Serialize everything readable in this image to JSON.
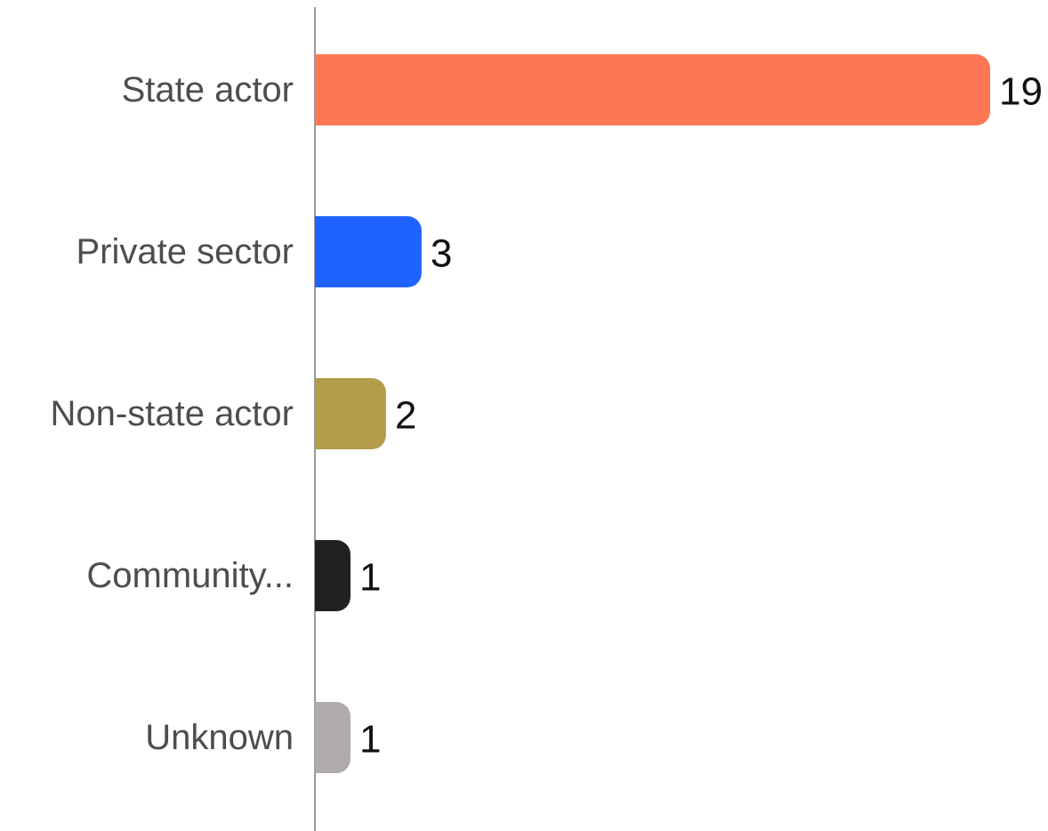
{
  "chart_data": {
    "type": "barh",
    "categories": [
      "State actor",
      "Private sector",
      "Non-state actor",
      "Community...",
      "Unknown"
    ],
    "values": [
      19,
      3,
      2,
      1,
      1
    ],
    "colors": [
      "#fe7754",
      "#1f63ff",
      "#b39c4a",
      "#222020",
      "#b0aaac"
    ]
  }
}
